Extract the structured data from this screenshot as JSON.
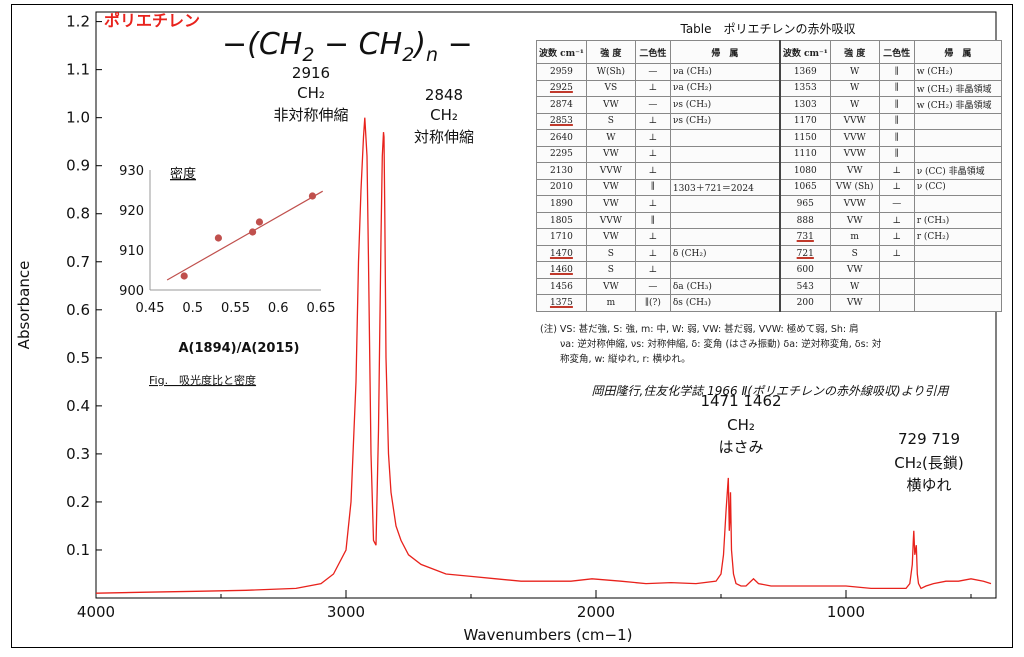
{
  "chart_data": {
    "type": "line",
    "title": "ポリエチレン",
    "formula": {
      "open": "−(",
      "ch2a": "CH",
      "sub2a": "2",
      "minus": " − ",
      "ch2b": "CH",
      "sub2b": "2",
      "close": ")",
      "n": "n",
      "tail": " −"
    },
    "xlabel": "Wavenumbers (cm−1)",
    "ylabel": "Absorbance",
    "xlim": [
      4000,
      400
    ],
    "ylim": [
      0,
      1.22
    ],
    "x_ticks": [
      "4000",
      "3000",
      "2000",
      "1000"
    ],
    "y_ticks": [
      "0.1",
      "0.2",
      "0.3",
      "0.4",
      "0.5",
      "0.6",
      "0.7",
      "0.8",
      "0.9",
      "1.0",
      "1.1",
      "1.2"
    ],
    "series": [
      {
        "color": "#e8221c",
        "x": [
          4000,
          3800,
          3600,
          3400,
          3200,
          3100,
          3050,
          3000,
          2980,
          2960,
          2950,
          2940,
          2930,
          2925,
          2916,
          2910,
          2900,
          2890,
          2880,
          2870,
          2860,
          2855,
          2850,
          2848,
          2845,
          2840,
          2830,
          2820,
          2800,
          2780,
          2750,
          2700,
          2600,
          2500,
          2400,
          2300,
          2200,
          2100,
          2016,
          1900,
          1800,
          1700,
          1600,
          1520,
          1500,
          1490,
          1480,
          1475,
          1471,
          1467,
          1465,
          1462,
          1458,
          1450,
          1440,
          1420,
          1400,
          1370,
          1350,
          1300,
          1200,
          1100,
          1000,
          900,
          800,
          760,
          745,
          735,
          731,
          729,
          725,
          719,
          715,
          710,
          700,
          680,
          650,
          600,
          550,
          500,
          450,
          420
        ],
        "y": [
          0.01,
          0.012,
          0.014,
          0.016,
          0.02,
          0.03,
          0.05,
          0.1,
          0.2,
          0.45,
          0.7,
          0.85,
          0.96,
          1.0,
          0.92,
          0.7,
          0.3,
          0.12,
          0.11,
          0.35,
          0.75,
          0.92,
          0.97,
          0.96,
          0.8,
          0.5,
          0.3,
          0.22,
          0.15,
          0.12,
          0.09,
          0.07,
          0.05,
          0.045,
          0.04,
          0.035,
          0.035,
          0.035,
          0.04,
          0.035,
          0.03,
          0.032,
          0.03,
          0.035,
          0.05,
          0.09,
          0.18,
          0.22,
          0.25,
          0.14,
          0.16,
          0.22,
          0.1,
          0.05,
          0.03,
          0.025,
          0.025,
          0.04,
          0.03,
          0.025,
          0.025,
          0.025,
          0.025,
          0.02,
          0.02,
          0.02,
          0.03,
          0.07,
          0.12,
          0.14,
          0.09,
          0.11,
          0.05,
          0.03,
          0.02,
          0.025,
          0.03,
          0.035,
          0.035,
          0.04,
          0.035,
          0.03
        ]
      }
    ],
    "annotations": [
      {
        "x": 2916,
        "lines": [
          "2916",
          "CH₂",
          "非対称伸縮"
        ]
      },
      {
        "x": 2848,
        "lines": [
          "2848",
          "CH₂",
          "対称伸縮"
        ]
      },
      {
        "x": 1465,
        "lines": [
          "1471  1462",
          "CH₂",
          "はさみ"
        ]
      },
      {
        "x": 724,
        "lines": [
          "729  719",
          "CH₂(長鎖)",
          "横ゆれ"
        ]
      }
    ],
    "citation": "岡田隆行,住友化学誌 1966 Ⅱ(ポリエチレンの赤外線吸収)より引用",
    "inset": {
      "type": "scatter",
      "title": "密度",
      "xlabel": "A(1894)/A(2015)",
      "xlim": [
        0.45,
        0.65
      ],
      "ylim": [
        900,
        930
      ],
      "x_ticks": [
        "0.45",
        "0.5",
        "0.55",
        "0.6",
        "0.65"
      ],
      "y_ticks": [
        "900",
        "910",
        "920",
        "930"
      ],
      "points": [
        [
          0.49,
          903.5
        ],
        [
          0.53,
          913
        ],
        [
          0.57,
          914.5
        ],
        [
          0.578,
          917
        ],
        [
          0.64,
          923.5
        ]
      ],
      "fit": [
        [
          0.47,
          902.5
        ],
        [
          0.652,
          924.7
        ]
      ],
      "color": "#c0504d",
      "caption": "Fig.　吸光度比と密度"
    },
    "table": {
      "caption": "Table　ポリエチレンの赤外吸収",
      "headers": [
        "波数 cm⁻¹",
        "強 度",
        "二色性",
        "帰　属",
        "波数 cm⁻¹",
        "強 度",
        "二色性",
        "帰　属"
      ],
      "rows": [
        [
          "2959",
          "W(Sh)",
          "—",
          "νa (CH₃)",
          "1369",
          "W",
          "∥",
          "w (CH₂)"
        ],
        [
          "2925",
          "VS",
          "⊥",
          "νa (CH₂)",
          "1353",
          "W",
          "∥",
          "w (CH₂) 非晶領域"
        ],
        [
          "2874",
          "VW",
          "—",
          "νs (CH₃)",
          "1303",
          "W",
          "∥",
          "w (CH₂) 非晶領域"
        ],
        [
          "2853",
          "S",
          "⊥",
          "νs (CH₂)",
          "1170",
          "VVW",
          "∥",
          ""
        ],
        [
          "2640",
          "W",
          "⊥",
          "",
          "1150",
          "VVW",
          "∥",
          ""
        ],
        [
          "2295",
          "VW",
          "⊥",
          "",
          "1110",
          "VVW",
          "∥",
          ""
        ],
        [
          "2130",
          "VVW",
          "⊥",
          "",
          "1080",
          "VW",
          "⊥",
          "ν (CC) 非晶領域"
        ],
        [
          "2010",
          "VW",
          "∥",
          "1303＋721＝2024",
          "1065",
          "VW (Sh)",
          "⊥",
          "ν (CC)"
        ],
        [
          "1890",
          "VW",
          "⊥",
          "",
          "965",
          "VVW",
          "—",
          ""
        ],
        [
          "1805",
          "VVW",
          "∥",
          "",
          "888",
          "VW",
          "⊥",
          "r (CH₃)"
        ],
        [
          "1710",
          "VW",
          "⊥",
          "",
          "731",
          "m",
          "⊥",
          "r (CH₂)"
        ],
        [
          "1470",
          "S",
          "⊥",
          "δ (CH₂)",
          "721",
          "S",
          "⊥",
          ""
        ],
        [
          "1460",
          "S",
          "⊥",
          "",
          "600",
          "VW",
          "",
          ""
        ],
        [
          "1456",
          "VW",
          "—",
          "δa (CH₃)",
          "543",
          "W",
          "",
          ""
        ],
        [
          "1375",
          "m",
          "∥(?)",
          "δs (CH₃)",
          "200",
          "VW",
          "",
          ""
        ]
      ],
      "underlined": [
        "2925",
        "2853",
        "1470",
        "1460",
        "1375",
        "731",
        "721"
      ],
      "notes": [
        "(注) VS: 甚だ強, S: 強, m: 中, W: 弱, VW: 甚だ弱, VVW: 極めて弱, Sh: 肩",
        "νa: 逆対称伸縮, νs: 対称伸縮, δ: 変角 (はさみ振動) δa: 逆対称変角, δs: 対",
        "称変角, w: 縦ゆれ, r: 横ゆれ。"
      ]
    }
  }
}
